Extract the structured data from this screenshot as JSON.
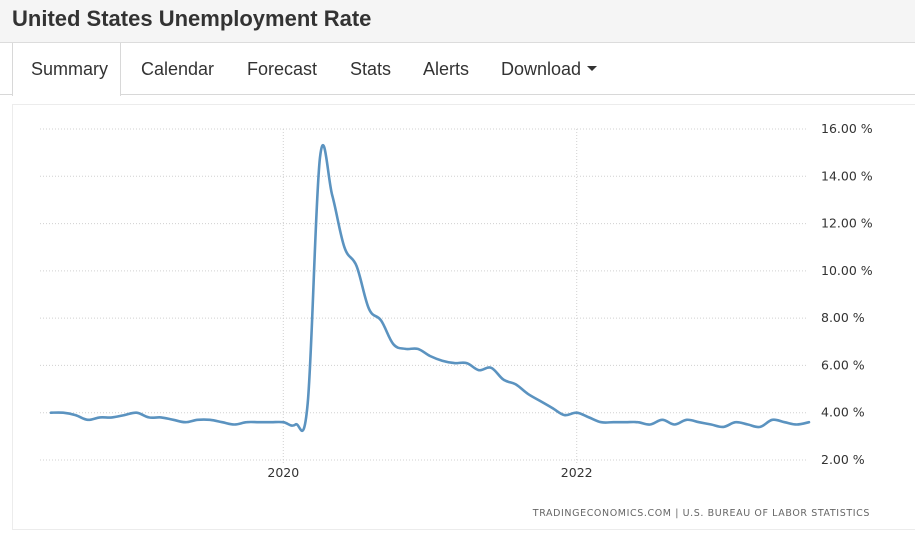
{
  "page": {
    "title": "United States Unemployment Rate"
  },
  "tabs": [
    {
      "label": "Summary",
      "active": true
    },
    {
      "label": "Calendar"
    },
    {
      "label": "Forecast"
    },
    {
      "label": "Stats"
    },
    {
      "label": "Alerts"
    },
    {
      "label": "Download",
      "icon": "caret-down-icon"
    }
  ],
  "colors": {
    "line": "#5b93c0",
    "grid": "#d0d0d0",
    "text": "#333333"
  },
  "chart_data": {
    "type": "line",
    "x_unit": "date",
    "x_range": [
      "2018-06",
      "2023-08"
    ],
    "ylim": [
      2,
      16
    ],
    "y_ticks": [
      2,
      4,
      6,
      8,
      10,
      12,
      14,
      16
    ],
    "y_tick_labels": [
      "2.00 %",
      "4.00 %",
      "6.00 %",
      "8.00 %",
      "10.00 %",
      "12.00 %",
      "14.00 %",
      "16.00 %"
    ],
    "x_ticks": [
      "2020-01",
      "2022-01"
    ],
    "x_tick_labels": [
      "2020",
      "2022"
    ],
    "grid": true,
    "source": "TRADINGECONOMICS.COM  |  U.S. BUREAU OF LABOR STATISTICS",
    "series": [
      {
        "x": [
          "2018-06",
          "2018-07",
          "2018-08",
          "2018-09",
          "2018-10",
          "2018-11",
          "2018-12",
          "2019-01",
          "2019-02",
          "2019-03",
          "2019-04",
          "2019-05",
          "2019-06",
          "2019-07",
          "2019-08",
          "2019-09",
          "2019-10",
          "2019-11",
          "2019-12",
          "2020-01",
          "2020-02",
          "2020-03",
          "2020-04",
          "2020-05",
          "2020-06",
          "2020-07",
          "2020-08",
          "2020-09",
          "2020-10",
          "2020-11",
          "2020-12",
          "2021-01",
          "2021-02",
          "2021-03",
          "2021-04",
          "2021-05",
          "2021-06",
          "2021-07",
          "2021-08",
          "2021-09",
          "2021-10",
          "2021-11",
          "2021-12",
          "2022-01",
          "2022-02",
          "2022-03",
          "2022-04",
          "2022-05",
          "2022-06",
          "2022-07",
          "2022-08",
          "2022-09",
          "2022-10",
          "2022-11",
          "2022-12",
          "2023-01",
          "2023-02",
          "2023-03",
          "2023-04",
          "2023-05",
          "2023-06",
          "2023-07",
          "2023-08"
        ],
        "values": [
          4.0,
          4.0,
          3.9,
          3.7,
          3.8,
          3.8,
          3.9,
          4.0,
          3.8,
          3.8,
          3.7,
          3.6,
          3.7,
          3.7,
          3.6,
          3.5,
          3.6,
          3.6,
          3.6,
          3.6,
          3.5,
          4.4,
          14.8,
          13.2,
          11.0,
          10.2,
          8.4,
          7.9,
          6.9,
          6.7,
          6.7,
          6.4,
          6.2,
          6.1,
          6.1,
          5.8,
          5.9,
          5.4,
          5.2,
          4.8,
          4.5,
          4.2,
          3.9,
          4.0,
          3.8,
          3.6,
          3.6,
          3.6,
          3.6,
          3.5,
          3.7,
          3.5,
          3.7,
          3.6,
          3.5,
          3.4,
          3.6,
          3.5,
          3.4,
          3.7,
          3.6,
          3.5,
          3.6
        ]
      }
    ]
  }
}
